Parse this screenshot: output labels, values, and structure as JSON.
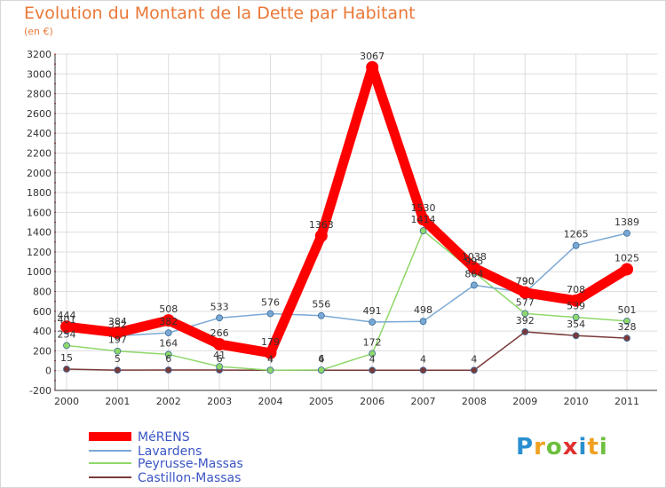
{
  "title": "Evolution du Montant de la Dette par Habitant",
  "subtitle": "(en €)",
  "logo_text": "Proxiti",
  "colors": {
    "title": "#e97838",
    "axis": "#333333",
    "grid": "#dddddd",
    "label": "#333333"
  },
  "chart_data": {
    "type": "line",
    "title": "Evolution du Montant de la Dette par Habitant",
    "unit": "(en €)",
    "xlabel": "",
    "ylabel": "",
    "grid": true,
    "legend_position": "bottom-left",
    "ylim": [
      -200,
      3200
    ],
    "yticks": [
      -200,
      0,
      200,
      400,
      600,
      800,
      1000,
      1200,
      1400,
      1600,
      1800,
      2000,
      2200,
      2400,
      2600,
      2800,
      3000,
      3200
    ],
    "categories": [
      "2000",
      "2001",
      "2002",
      "2003",
      "2004",
      "2005",
      "2006",
      "2007",
      "2008",
      "2009",
      "2010",
      "2011"
    ],
    "series": [
      {
        "name": "MéRENS",
        "color": "#ff0000",
        "width": 11,
        "marker": 7,
        "values": [
          444,
          384,
          508,
          266,
          179,
          1363,
          3067,
          1530,
          1038,
          790,
          708,
          1025
        ],
        "labels": [
          "444",
          "384",
          "508",
          "266",
          "179",
          "1363",
          "3067",
          "1530",
          "1038",
          "790",
          "708",
          "1025"
        ]
      },
      {
        "name": "Lavardens",
        "color": "#7aa8d4",
        "width": 1.5,
        "marker": 3.5,
        "values": [
          401,
          352,
          382,
          533,
          576,
          556,
          491,
          498,
          864,
          790,
          1265,
          1389
        ],
        "labels": [
          "401",
          "352",
          "382",
          "533",
          "576",
          "556",
          "491",
          "498",
          "864",
          "790",
          "1265",
          "1389"
        ]
      },
      {
        "name": "Peyrusse-Massas",
        "color": "#8fd86a",
        "width": 1.5,
        "marker": 3.5,
        "values": [
          254,
          197,
          164,
          41,
          4,
          6,
          172,
          1414,
          995,
          577,
          539,
          501
        ],
        "labels": [
          "254",
          "197",
          "164",
          "41",
          "4",
          "6",
          "172",
          "1414",
          "995",
          "577",
          "539",
          "501"
        ]
      },
      {
        "name": "Castillon-Massas",
        "color": "#7a3a3a",
        "width": 1.5,
        "marker": 3.5,
        "values": [
          15,
          5,
          6,
          6,
          4,
          4,
          4,
          4,
          4,
          392,
          354,
          328
        ],
        "labels": [
          "15",
          "5",
          "6",
          "6",
          "4",
          "4",
          "4",
          "4",
          "4",
          "392",
          "354",
          "328"
        ]
      }
    ]
  }
}
